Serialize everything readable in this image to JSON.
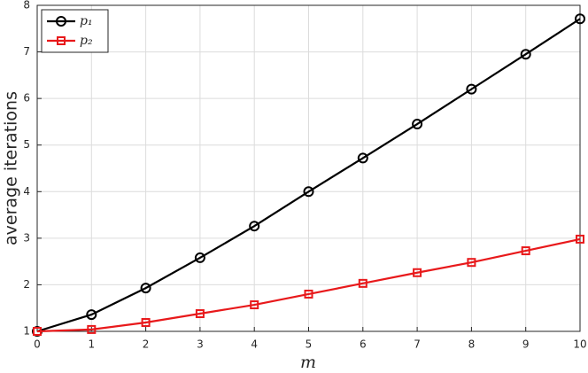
{
  "chart_data": {
    "type": "line",
    "x_label": "m",
    "y_label": "average iterations",
    "x": [
      0,
      1,
      2,
      3,
      4,
      5,
      6,
      7,
      8,
      9,
      10
    ],
    "series": [
      {
        "name": "p₁",
        "color": "#000000",
        "marker": "circle",
        "values": [
          1.0,
          1.36,
          1.93,
          2.58,
          3.26,
          4.0,
          4.72,
          5.45,
          6.2,
          6.95,
          7.71
        ]
      },
      {
        "name": "p₂",
        "color": "#e8191b",
        "marker": "square",
        "values": [
          1.0,
          1.04,
          1.19,
          1.38,
          1.57,
          1.8,
          2.03,
          2.26,
          2.48,
          2.73,
          2.98
        ]
      }
    ],
    "xlim": [
      0,
      10
    ],
    "ylim": [
      1,
      8
    ],
    "xticks": [
      0,
      1,
      2,
      3,
      4,
      5,
      6,
      7,
      8,
      9,
      10
    ],
    "yticks": [
      1,
      2,
      3,
      4,
      5,
      6,
      7,
      8
    ],
    "grid": true,
    "legend": "upper-left"
  }
}
